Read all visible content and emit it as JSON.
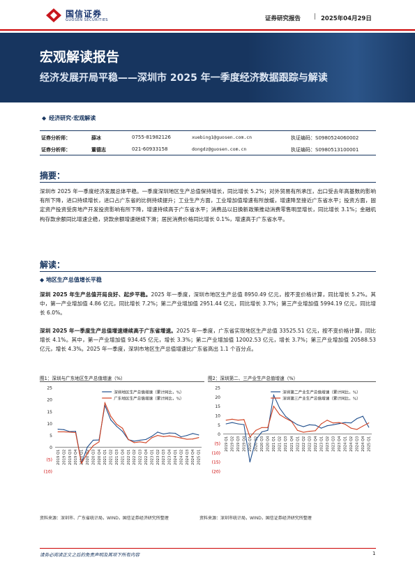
{
  "header": {
    "logo_cn": "国信证券",
    "logo_en": "GUOSEN SECURITIES",
    "report_type": "证券研究报告",
    "separator": "|",
    "date": "2025年04月29日"
  },
  "banner": {
    "title": "宏观解读报告",
    "subtitle": "经济发展开局平稳——深圳市 2025 年一季度经济数据跟踪与解读"
  },
  "category": "经济研究·宏观解读",
  "analysts": [
    {
      "role": "证券分析师：",
      "name": "薛冰",
      "tel": "0755-81982126",
      "email": "xuebing1@guosen.com.cn",
      "license": "执证编码：S0980524060002"
    },
    {
      "role": "证券分析师：",
      "name": "董德志",
      "tel": "021-60933158",
      "email": "dongdz@guosen.com.cn",
      "license": "执证编码：S0980513100001"
    }
  ],
  "abstract": {
    "heading": "摘要：",
    "text": "深圳市 2025 年一季度经济发展总体平稳。一季度深圳地区生产总值保持增长，同比增长 5.2%；对外贸易有所承压，出口受去年高基数的影响有所下降，进口持续增长，进口占广东省的比例持续提升；工业生产方面，工业增加值增速有所放缓，增速降至接近广东省水平；投资方面，固定资产投资受房地产开发投资影响有所下降，增速持续高于广东省水平；消费品以旧换新政策推动消费零售明显增长，同比增长 3.1%；金融机构存款余额同比增速企稳，贷款余额增速继续下滑；居民消费价格同比增长 0.1%，增速高于广东省水平。"
  },
  "interpretation": {
    "heading": "解读：",
    "subheading": "地区生产总值增长平稳",
    "p1_bold": "深圳 2025 年生产总值开局良好、起步平稳。",
    "p1_text": "2025 年一季度，深圳市地区生产总值 8950.49 亿元，按不变价格计算，同比增长 5.2%。其中，第一产业增加值 4.86 亿元，同比增长 7.2%；第二产业增加值 2951.44 亿元，同比增长 3.7%；第三产业增加值 5994.19 亿元，同比增长 6.0%。",
    "p2_bold": "深圳 2025 年一季度生产总值增速继续高于广东省增速。",
    "p2_text": "2025 年一季度，广东省实现地区生产总值 33525.51 亿元，按不变价格计算，同比增长 4.1%。其中，第一产业增加值 934.45 亿元，增长 3.3%；第二产业增加值 12002.53 亿元，增长 3.7%；第三产业增加值 20588.53 亿元，增长 4.3%。2025 年一季度，深圳市地区生产总值增速比广东省高出 1.1 个百分点。"
  },
  "figures": {
    "fig1_title": "图1：深圳与广东地区生产总值增速（%）",
    "fig2_title": "图2：深圳第二、三产业生产总值增速（%）",
    "fig1_source": "资料来源：深圳市、广东省统计局，WIND，国信证券经济研究所整理",
    "fig2_source": "资料来源：深圳市统计局，WIND，国信证券经济研究所整理"
  },
  "chart_data": [
    {
      "type": "line",
      "categories": [
        "2019 Q1",
        "2019 Q2",
        "2019 Q3",
        "2019 Q4",
        "2020 Q1",
        "2020 Q2",
        "2020 Q3",
        "2020 Q4",
        "2021 Q1",
        "2021 Q2",
        "2021 Q3",
        "2021 Q4",
        "2022 Q1",
        "2022 Q2",
        "2022 Q3",
        "2022 Q4",
        "2023 Q1",
        "2023 Q2",
        "2023 Q3",
        "2023 Q4",
        "2024 Q1",
        "2024 Q2",
        "2024 Q3",
        "2024 Q4",
        "2025 Q1"
      ],
      "series": [
        {
          "name": "深圳地区生产总值增速（累计同比，%）",
          "color": "#1f4e8c",
          "values": [
            7.6,
            7.4,
            6.6,
            6.7,
            -6.6,
            0.1,
            3.0,
            3.1,
            17.6,
            11.5,
            8.8,
            6.7,
            3.2,
            2.6,
            3.0,
            3.3,
            4.6,
            6.4,
            5.6,
            6.0,
            5.9,
            4.4,
            5.0,
            5.8,
            5.2
          ]
        },
        {
          "name": "广东地区生产总值增速（累计同比，%）",
          "color": "#d04020",
          "values": [
            6.5,
            6.5,
            6.4,
            6.2,
            -6.7,
            -2.5,
            0.7,
            2.3,
            18.6,
            13.0,
            9.7,
            8.0,
            3.3,
            2.0,
            2.3,
            1.9,
            4.0,
            5.0,
            4.5,
            4.8,
            4.4,
            3.9,
            3.4,
            3.5,
            4.1
          ]
        }
      ],
      "ylim": [
        -10,
        25
      ],
      "yticks": [
        "(10)",
        "(5)",
        "0",
        "5",
        "10",
        "15",
        "20",
        "25"
      ],
      "legend": "top-center"
    },
    {
      "type": "line",
      "categories": [
        "2019 Q1",
        "2019 Q2",
        "2019 Q3",
        "2019 Q4",
        "2020 Q1",
        "2020 Q2",
        "2020 Q3",
        "2020 Q4",
        "2021 Q1",
        "2021 Q2",
        "2021 Q3",
        "2021 Q4",
        "2022 Q1",
        "2022 Q2",
        "2022 Q3",
        "2022 Q4",
        "2023 Q1",
        "2023 Q2",
        "2023 Q3",
        "2023 Q4",
        "2024 Q1",
        "2024 Q2",
        "2024 Q3",
        "2024 Q4",
        "2025 Q1"
      ],
      "series": [
        {
          "name": "深圳第二产业生产总值增速（累计同比，%）",
          "color": "#1f4e8c",
          "values": [
            5.5,
            6.2,
            5.5,
            5.1,
            -15.0,
            -3.0,
            1.2,
            2.0,
            21.0,
            14.0,
            9.5,
            7.0,
            5.0,
            4.0,
            5.0,
            4.8,
            3.2,
            4.5,
            5.0,
            5.6,
            6.2,
            6.0,
            8.3,
            9.6,
            3.7
          ]
        },
        {
          "name": "深圳第三产业生产总值增速（累计同比，%）",
          "color": "#d04020",
          "values": [
            7.5,
            8.0,
            7.5,
            7.8,
            -1.5,
            2.0,
            3.5,
            3.5,
            15.0,
            10.5,
            8.5,
            6.8,
            2.0,
            1.0,
            1.5,
            1.8,
            5.5,
            7.5,
            6.0,
            6.2,
            5.3,
            3.2,
            2.5,
            4.3,
            6.0
          ]
        }
      ],
      "ylim": [
        -20,
        25
      ],
      "yticks": [
        "(20)",
        "(15)",
        "(10)",
        "(5)",
        "0",
        "5",
        "10",
        "15",
        "20",
        "25"
      ],
      "legend": "top-center"
    }
  ],
  "footer": {
    "note": "请务必阅读正文之后的免责声明及其项下所有内容",
    "page": "1"
  }
}
